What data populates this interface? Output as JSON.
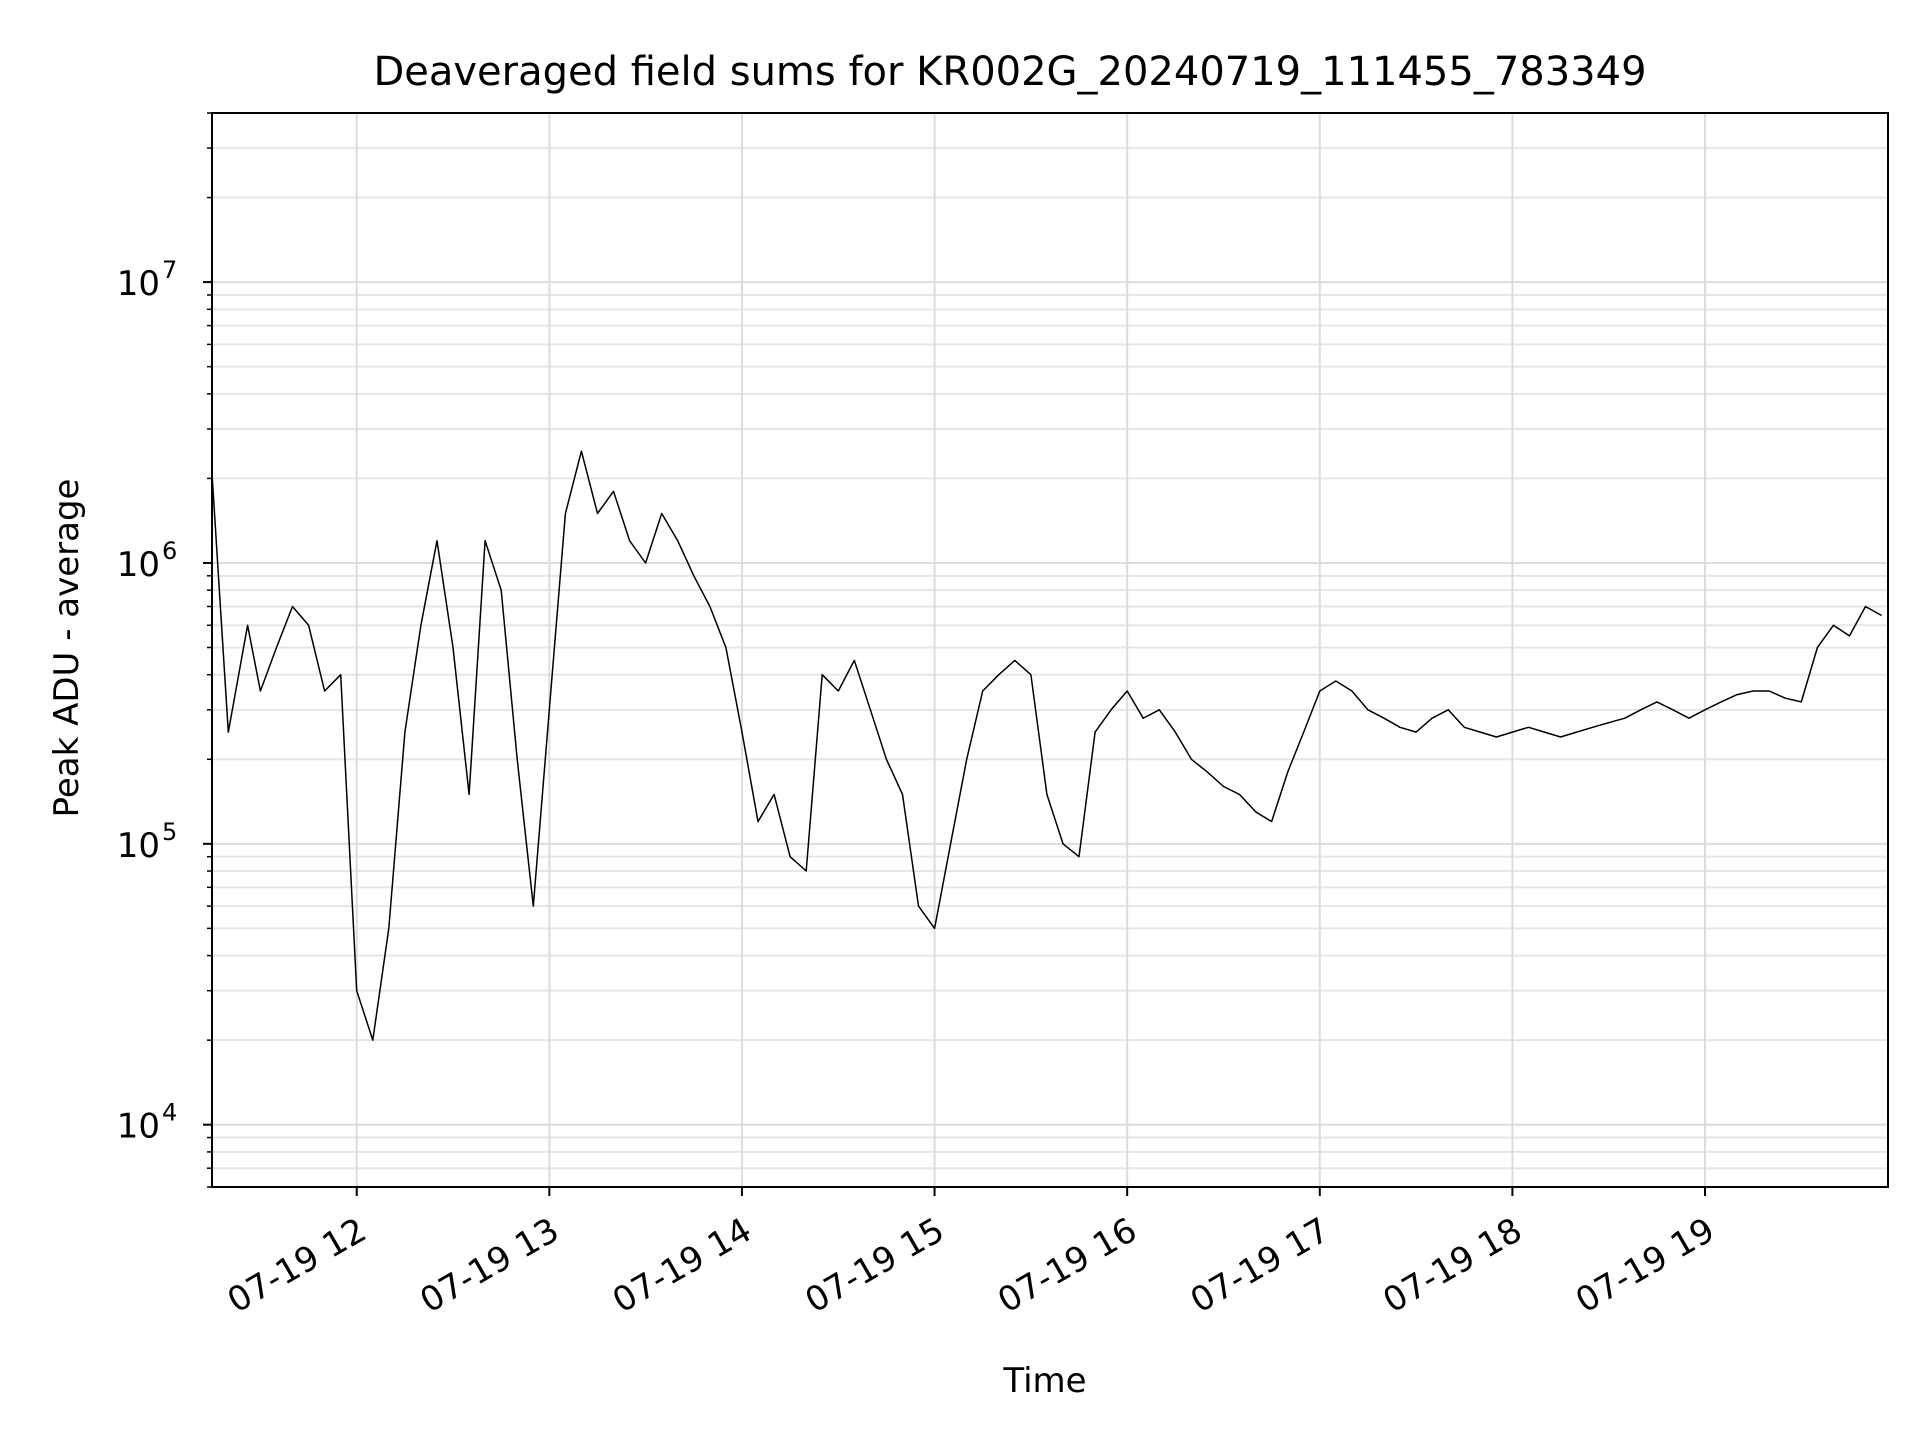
{
  "chart_data": {
    "type": "line",
    "title": "Deaveraged field sums for KR002G_20240719_111455_783349",
    "xlabel": "Time",
    "ylabel": "Peak ADU - average",
    "yscale": "log",
    "xlim": [
      "07-19 11:14:55",
      "07-19 19:57"
    ],
    "ylim": [
      6000,
      40000000
    ],
    "grid": true,
    "line_color": "#000000",
    "x_ticks": [
      {
        "t": "07-19 12:00",
        "label": "07-19 12"
      },
      {
        "t": "07-19 13:00",
        "label": "07-19 13"
      },
      {
        "t": "07-19 14:00",
        "label": "07-19 14"
      },
      {
        "t": "07-19 15:00",
        "label": "07-19 15"
      },
      {
        "t": "07-19 16:00",
        "label": "07-19 16"
      },
      {
        "t": "07-19 17:00",
        "label": "07-19 17"
      },
      {
        "t": "07-19 18:00",
        "label": "07-19 18"
      },
      {
        "t": "07-19 19:00",
        "label": "07-19 19"
      }
    ],
    "y_ticks": [
      {
        "value": 10000,
        "base": "10",
        "exp": "4"
      },
      {
        "value": 100000,
        "base": "10",
        "exp": "5"
      },
      {
        "value": 1000000,
        "base": "10",
        "exp": "6"
      },
      {
        "value": 10000000,
        "base": "10",
        "exp": "7"
      }
    ],
    "series": [
      {
        "x": [
          "07-19 11:15",
          "07-19 11:20",
          "07-19 11:26",
          "07-19 11:30",
          "07-19 11:35",
          "07-19 11:40",
          "07-19 11:45",
          "07-19 11:50",
          "07-19 11:55",
          "07-19 12:00",
          "07-19 12:05",
          "07-19 12:10",
          "07-19 12:15",
          "07-19 12:20",
          "07-19 12:25",
          "07-19 12:30",
          "07-19 12:35",
          "07-19 12:40",
          "07-19 12:45",
          "07-19 12:50",
          "07-19 12:55",
          "07-19 13:00",
          "07-19 13:05",
          "07-19 13:10",
          "07-19 13:15",
          "07-19 13:20",
          "07-19 13:25",
          "07-19 13:30",
          "07-19 13:35",
          "07-19 13:40",
          "07-19 13:45",
          "07-19 13:50",
          "07-19 13:55",
          "07-19 14:00",
          "07-19 14:05",
          "07-19 14:10",
          "07-19 14:15",
          "07-19 14:20",
          "07-19 14:25",
          "07-19 14:30",
          "07-19 14:35",
          "07-19 14:40",
          "07-19 14:45",
          "07-19 14:50",
          "07-19 14:55",
          "07-19 15:00",
          "07-19 15:05",
          "07-19 15:10",
          "07-19 15:15",
          "07-19 15:20",
          "07-19 15:25",
          "07-19 15:30",
          "07-19 15:35",
          "07-19 15:40",
          "07-19 15:45",
          "07-19 15:50",
          "07-19 15:55",
          "07-19 16:00",
          "07-19 16:05",
          "07-19 16:10",
          "07-19 16:15",
          "07-19 16:20",
          "07-19 16:25",
          "07-19 16:30",
          "07-19 16:35",
          "07-19 16:40",
          "07-19 16:45",
          "07-19 16:50",
          "07-19 16:55",
          "07-19 17:00",
          "07-19 17:05",
          "07-19 17:10",
          "07-19 17:15",
          "07-19 17:20",
          "07-19 17:25",
          "07-19 17:30",
          "07-19 17:35",
          "07-19 17:40",
          "07-19 17:45",
          "07-19 17:50",
          "07-19 17:55",
          "07-19 18:00",
          "07-19 18:05",
          "07-19 18:10",
          "07-19 18:15",
          "07-19 18:20",
          "07-19 18:25",
          "07-19 18:30",
          "07-19 18:35",
          "07-19 18:40",
          "07-19 18:45",
          "07-19 18:50",
          "07-19 18:55",
          "07-19 19:00",
          "07-19 19:05",
          "07-19 19:10",
          "07-19 19:15",
          "07-19 19:20",
          "07-19 19:25",
          "07-19 19:30",
          "07-19 19:35",
          "07-19 19:40",
          "07-19 19:45",
          "07-19 19:50",
          "07-19 19:55"
        ],
        "y": [
          2000000,
          250000,
          600000,
          350000,
          500000,
          700000,
          600000,
          350000,
          400000,
          30000,
          20000,
          50000,
          250000,
          600000,
          1200000,
          500000,
          150000,
          1200000,
          800000,
          200000,
          60000,
          300000,
          1500000,
          2500000,
          1500000,
          1800000,
          1200000,
          1000000,
          1500000,
          1200000,
          900000,
          700000,
          500000,
          250000,
          120000,
          150000,
          90000,
          80000,
          400000,
          350000,
          450000,
          300000,
          200000,
          150000,
          60000,
          50000,
          100000,
          200000,
          350000,
          400000,
          450000,
          400000,
          150000,
          100000,
          90000,
          250000,
          300000,
          350000,
          280000,
          300000,
          250000,
          200000,
          180000,
          160000,
          150000,
          130000,
          120000,
          180000,
          250000,
          350000,
          380000,
          350000,
          300000,
          280000,
          260000,
          250000,
          280000,
          300000,
          260000,
          250000,
          240000,
          250000,
          260000,
          250000,
          240000,
          250000,
          260000,
          270000,
          280000,
          300000,
          320000,
          300000,
          280000,
          300000,
          320000,
          340000,
          350000,
          350000,
          330000,
          320000,
          500000,
          600000,
          550000,
          700000,
          650000
        ]
      }
    ]
  }
}
